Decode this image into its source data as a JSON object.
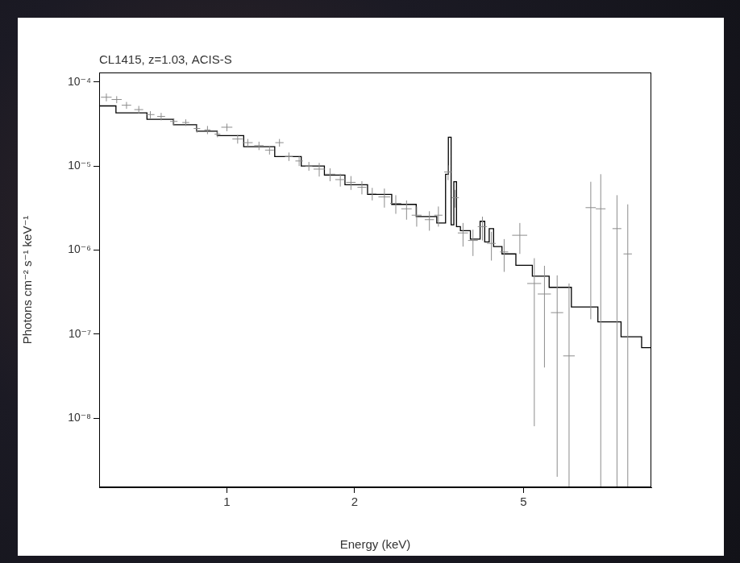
{
  "chart_data": {
    "type": "scatter",
    "title": "CL1415, z=1.03, ACIS-S",
    "x_label": "Energy (keV)",
    "y_label": "Photons cm⁻² s⁻¹ keV⁻¹",
    "log": true,
    "grid": false,
    "xlim": [
      0.5,
      10
    ],
    "xticks": [
      1,
      2,
      5
    ],
    "ylim": [
      1.5e-09,
      0.00013
    ],
    "yticks": [
      {
        "value": 0.0001,
        "label": "10⁻⁴"
      },
      {
        "value": 1e-05,
        "label": "10⁻⁵"
      },
      {
        "value": 1e-06,
        "label": "10⁻⁶"
      },
      {
        "value": 1e-07,
        "label": "10⁻⁷"
      },
      {
        "value": 1e-08,
        "label": "10⁻⁸"
      }
    ],
    "series": [
      {
        "type": "scatter",
        "color": "#8c8c8c",
        "marker": "none",
        "x": [
          0.52,
          0.55,
          0.58,
          0.62,
          0.66,
          0.7,
          0.75,
          0.8,
          0.85,
          0.9,
          0.95,
          1.0,
          1.06,
          1.12,
          1.19,
          1.26,
          1.33,
          1.4,
          1.48,
          1.56,
          1.65,
          1.75,
          1.85,
          1.96,
          2.08,
          2.2,
          2.35,
          2.5,
          2.65,
          2.8,
          3.0,
          3.15,
          3.32,
          3.45,
          3.6,
          3.8,
          4.0,
          4.2,
          4.5,
          4.9,
          5.3,
          5.6,
          6.0,
          6.4,
          7.2,
          7.6,
          8.3,
          8.8
        ],
        "xerr": [
          0.015,
          0.015,
          0.015,
          0.015,
          0.015,
          0.015,
          0.015,
          0.015,
          0.015,
          0.015,
          0.015,
          0.03,
          0.03,
          0.03,
          0.03,
          0.03,
          0.03,
          0.03,
          0.03,
          0.03,
          0.05,
          0.05,
          0.05,
          0.05,
          0.05,
          0.05,
          0.075,
          0.075,
          0.075,
          0.075,
          0.075,
          0.07,
          0.07,
          0.07,
          0.1,
          0.1,
          0.1,
          0.1,
          0.1,
          0.2,
          0.2,
          0.2,
          0.2,
          0.2,
          0.2,
          0.2,
          0.2,
          0.2
        ],
        "values": [
          6.6e-05,
          6.2e-05,
          5.3e-05,
          4.7e-05,
          4.1e-05,
          3.9e-05,
          3.4e-05,
          3.3e-05,
          2.8e-05,
          2.7e-05,
          2.4e-05,
          2.9e-05,
          2.1e-05,
          1.9e-05,
          1.75e-05,
          1.55e-05,
          1.9e-05,
          1.3e-05,
          1.15e-05,
          1e-05,
          9.2e-06,
          8e-06,
          6.9e-06,
          6.4e-06,
          5.6e-06,
          4.7e-06,
          4.3e-06,
          3.6e-06,
          3.1e-06,
          2.6e-06,
          2.3e-06,
          2.6e-06,
          8.5e-06,
          4.2e-06,
          1.6e-06,
          1.3e-06,
          1.9e-06,
          1.2e-06,
          9.5e-07,
          1.5e-06,
          4e-07,
          3e-07,
          1.8e-07,
          5.5e-08,
          3.2e-06,
          3.1e-06,
          1.8e-06,
          9e-07
        ],
        "y_low": [
          5.9e-05,
          5.6e-05,
          4.8e-05,
          4.2e-05,
          3.7e-05,
          3.5e-05,
          3.1e-05,
          3e-05,
          2.5e-05,
          2.4e-05,
          2.2e-05,
          2.6e-05,
          1.85e-05,
          1.7e-05,
          1.55e-05,
          1.37e-05,
          1.7e-05,
          1.15e-05,
          1e-05,
          8.8e-06,
          7.5e-06,
          6.6e-06,
          5.7e-06,
          5.2e-06,
          4.6e-06,
          3.9e-06,
          3.2e-06,
          2.7e-06,
          2.3e-06,
          1.9e-06,
          1.7e-06,
          1.9e-06,
          6.8e-06,
          3.2e-06,
          1.1e-06,
          8.5e-07,
          1.3e-06,
          7.5e-07,
          5.5e-07,
          9e-07,
          8e-09,
          4e-08,
          2e-09,
          1e-09,
          1.5e-07,
          1e-09,
          1e-09,
          1e-09
        ],
        "y_high": [
          7.3e-05,
          6.8e-05,
          5.8e-05,
          5.2e-05,
          4.5e-05,
          4.3e-05,
          3.7e-05,
          3.6e-05,
          3.1e-05,
          3e-05,
          2.6e-05,
          3.2e-05,
          2.35e-05,
          2.1e-05,
          1.95e-05,
          1.73e-05,
          2.1e-05,
          1.45e-05,
          1.3e-05,
          1.12e-05,
          1.09e-05,
          9.4e-06,
          8.1e-06,
          7.6e-06,
          6.6e-06,
          5.5e-06,
          5.4e-06,
          4.5e-06,
          3.9e-06,
          3.3e-06,
          2.9e-06,
          3.3e-06,
          1.02e-05,
          5.2e-06,
          2.1e-06,
          1.75e-06,
          2.5e-06,
          1.65e-06,
          1.35e-06,
          2.1e-06,
          8e-07,
          6.5e-07,
          5e-07,
          4e-07,
          6.5e-06,
          8e-06,
          4.5e-06,
          3.5e-06
        ]
      },
      {
        "type": "line",
        "color": "#000000",
        "line_style": "steps",
        "x": [
          0.5,
          0.6,
          0.7,
          0.8,
          0.9,
          1.0,
          1.2,
          1.4,
          1.6,
          1.8,
          2.0,
          2.3,
          2.6,
          3.0,
          3.25,
          3.3,
          3.35,
          3.4,
          3.45,
          3.5,
          3.6,
          3.9,
          4.0,
          4.1,
          4.2,
          4.3,
          4.6,
          5.0,
          5.5,
          6.0,
          7.0,
          8.0,
          9.0,
          10.0
        ],
        "values": [
          5.2e-05,
          4.3e-05,
          3.6e-05,
          3.1e-05,
          2.6e-05,
          2.3e-05,
          1.7e-05,
          1.3e-05,
          1e-05,
          7.8e-06,
          6e-06,
          4.6e-06,
          3.5e-06,
          2.5e-06,
          2.1e-06,
          8e-06,
          2.2e-05,
          2e-06,
          6.5e-06,
          1.9e-06,
          1.7e-06,
          1.35e-06,
          2.2e-06,
          1.25e-06,
          1.8e-06,
          1.1e-06,
          9e-07,
          6.6e-07,
          4.9e-07,
          3.6e-07,
          2.1e-07,
          1.4e-07,
          9.3e-08,
          6.9e-08
        ]
      }
    ]
  }
}
